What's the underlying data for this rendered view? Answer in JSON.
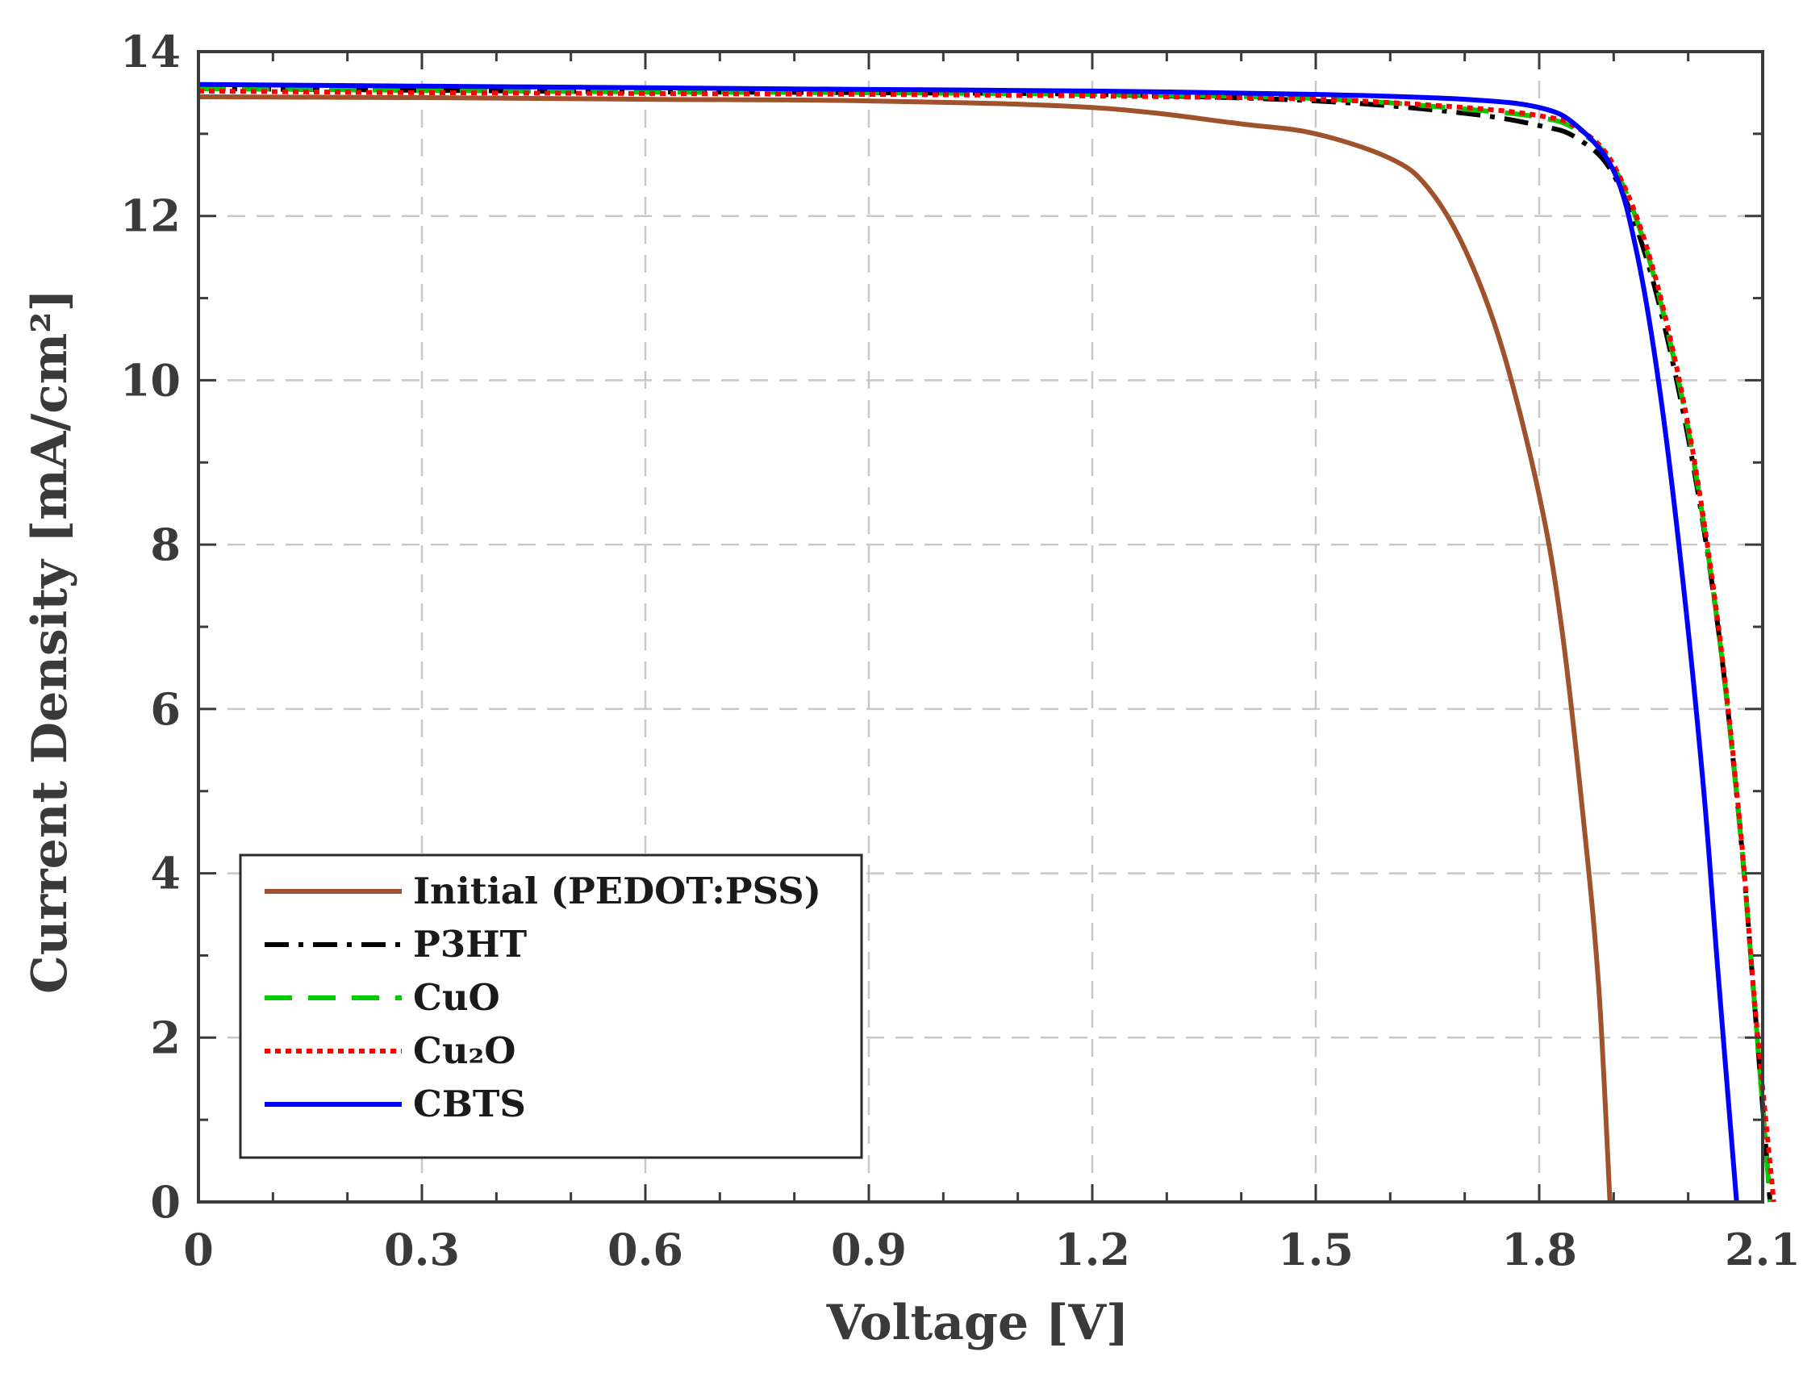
{
  "chart_data": {
    "type": "line",
    "xlabel": "Voltage [V]",
    "ylabel": "Current Density [mA/cm²]",
    "xlim": [
      0,
      2.1
    ],
    "ylim": [
      0,
      14
    ],
    "x_ticks": [
      "0",
      "0.3",
      "0.6",
      "0.9",
      "1.2",
      "1.5",
      "1.8",
      "2.1"
    ],
    "y_ticks": [
      "0",
      "2",
      "4",
      "6",
      "8",
      "10",
      "12",
      "14"
    ],
    "grid": true,
    "legend_position": "bottom-left",
    "series": [
      {
        "name": "Initial (PEDOT:PSS)",
        "color": "#a0522d",
        "style": "solid",
        "points": [
          [
            0,
            13.45
          ],
          [
            0.3,
            13.44
          ],
          [
            0.6,
            13.42
          ],
          [
            0.9,
            13.4
          ],
          [
            1.2,
            13.32
          ],
          [
            1.4,
            13.12
          ],
          [
            1.5,
            13.0
          ],
          [
            1.6,
            12.7
          ],
          [
            1.65,
            12.35
          ],
          [
            1.7,
            11.6
          ],
          [
            1.75,
            10.4
          ],
          [
            1.8,
            8.6
          ],
          [
            1.83,
            7.0
          ],
          [
            1.86,
            4.6
          ],
          [
            1.88,
            2.6
          ],
          [
            1.895,
            0.0
          ]
        ]
      },
      {
        "name": "P3HT",
        "color": "#000000",
        "style": "dashdot",
        "points": [
          [
            0,
            13.55
          ],
          [
            0.3,
            13.53
          ],
          [
            0.6,
            13.51
          ],
          [
            0.9,
            13.5
          ],
          [
            1.2,
            13.48
          ],
          [
            1.5,
            13.4
          ],
          [
            1.7,
            13.25
          ],
          [
            1.8,
            13.1
          ],
          [
            1.85,
            12.95
          ],
          [
            1.9,
            12.5
          ],
          [
            1.95,
            11.3
          ],
          [
            2.0,
            9.3
          ],
          [
            2.04,
            7.0
          ],
          [
            2.07,
            4.5
          ],
          [
            2.09,
            2.3
          ],
          [
            2.11,
            0.0
          ]
        ]
      },
      {
        "name": "CuO",
        "color": "#00cc00",
        "style": "dashed",
        "points": [
          [
            0,
            13.55
          ],
          [
            0.3,
            13.53
          ],
          [
            0.6,
            13.51
          ],
          [
            0.9,
            13.5
          ],
          [
            1.2,
            13.48
          ],
          [
            1.5,
            13.43
          ],
          [
            1.7,
            13.3
          ],
          [
            1.8,
            13.2
          ],
          [
            1.85,
            13.05
          ],
          [
            1.9,
            12.6
          ],
          [
            1.95,
            11.4
          ],
          [
            2.0,
            9.4
          ],
          [
            2.04,
            7.0
          ],
          [
            2.07,
            4.5
          ],
          [
            2.09,
            2.3
          ],
          [
            2.11,
            0.0
          ]
        ]
      },
      {
        "name": "Cu₂O",
        "color": "#ff0000",
        "style": "dotted",
        "points": [
          [
            0,
            13.52
          ],
          [
            0.3,
            13.5
          ],
          [
            0.6,
            13.49
          ],
          [
            0.9,
            13.48
          ],
          [
            1.2,
            13.46
          ],
          [
            1.5,
            13.42
          ],
          [
            1.7,
            13.32
          ],
          [
            1.8,
            13.22
          ],
          [
            1.85,
            13.08
          ],
          [
            1.9,
            12.62
          ],
          [
            1.95,
            11.45
          ],
          [
            2.0,
            9.45
          ],
          [
            2.04,
            7.05
          ],
          [
            2.07,
            4.55
          ],
          [
            2.09,
            2.35
          ],
          [
            2.115,
            0.0
          ]
        ]
      },
      {
        "name": "CBTS",
        "color": "#0000ff",
        "style": "solid",
        "points": [
          [
            0,
            13.6
          ],
          [
            0.3,
            13.58
          ],
          [
            0.6,
            13.56
          ],
          [
            0.9,
            13.54
          ],
          [
            1.2,
            13.52
          ],
          [
            1.5,
            13.48
          ],
          [
            1.7,
            13.42
          ],
          [
            1.8,
            13.32
          ],
          [
            1.85,
            13.1
          ],
          [
            1.9,
            12.55
          ],
          [
            1.93,
            11.6
          ],
          [
            1.96,
            10.0
          ],
          [
            1.99,
            7.8
          ],
          [
            2.02,
            5.1
          ],
          [
            2.04,
            2.8
          ],
          [
            2.065,
            0.0
          ]
        ]
      }
    ]
  }
}
